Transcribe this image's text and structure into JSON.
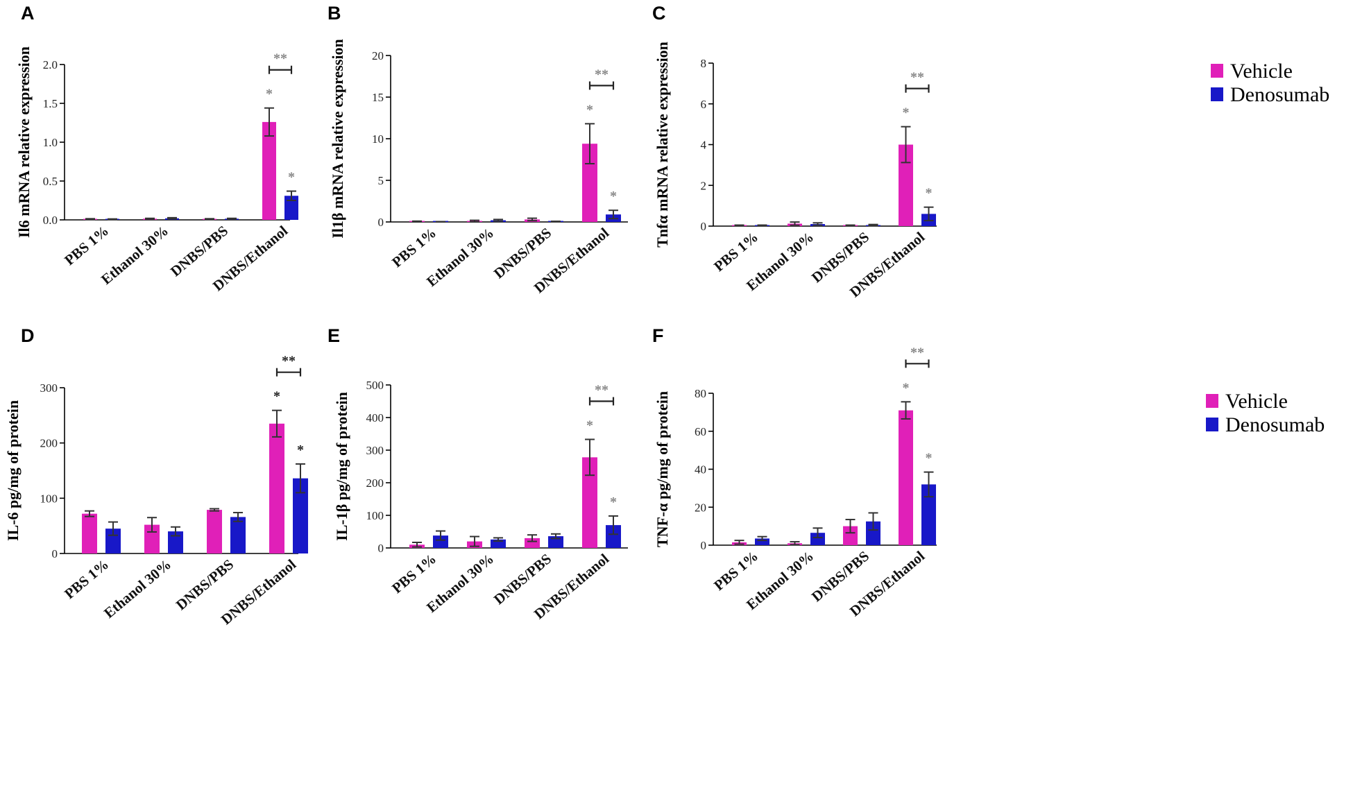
{
  "colors": {
    "vehicle": "#e020b8",
    "denosumab": "#1818c8"
  },
  "legend": [
    {
      "name": "Vehicle",
      "color": "#e020b8"
    },
    {
      "name": "Denosumab",
      "color": "#1818c8"
    }
  ],
  "chart_data": [
    {
      "panel": "A",
      "type": "bar",
      "ylabel": "Il6 mRNA relative expression",
      "ylim": [
        0,
        2.0
      ],
      "yticks": [
        "0.0",
        "0.5",
        "1.0",
        "1.5",
        "2.0"
      ],
      "categories": [
        "PBS 1%",
        "Ethanol 30%",
        "DNBS/PBS",
        "DNBS/Ethanol"
      ],
      "series": [
        {
          "name": "Vehicle",
          "values": [
            0.01,
            0.015,
            0.01,
            1.26
          ],
          "errors": [
            0.005,
            0.005,
            0.005,
            0.18
          ],
          "sig": [
            "",
            "",
            "",
            "*"
          ]
        },
        {
          "name": "Denosumab",
          "values": [
            0.008,
            0.02,
            0.015,
            0.31
          ],
          "errors": [
            0.004,
            0.008,
            0.005,
            0.06
          ],
          "sig": [
            "",
            "",
            "",
            "*"
          ]
        }
      ],
      "bracket": {
        "category": 3,
        "label": "**"
      }
    },
    {
      "panel": "B",
      "type": "bar",
      "ylabel": "Il1β mRNA relative expression",
      "ylim": [
        0,
        20
      ],
      "yticks": [
        "0",
        "5",
        "10",
        "15",
        "20"
      ],
      "categories": [
        "PBS 1%",
        "Ethanol 30%",
        "DNBS/PBS",
        "DNBS/Ethanol"
      ],
      "series": [
        {
          "name": "Vehicle",
          "values": [
            0.05,
            0.1,
            0.3,
            9.4
          ],
          "errors": [
            0.05,
            0.1,
            0.15,
            2.4
          ],
          "sig": [
            "",
            "",
            "",
            "*"
          ]
        },
        {
          "name": "Denosumab",
          "values": [
            0.02,
            0.2,
            0.05,
            0.9
          ],
          "errors": [
            0.02,
            0.1,
            0.03,
            0.5
          ],
          "sig": [
            "",
            "",
            "",
            "*"
          ]
        }
      ],
      "bracket": {
        "category": 3,
        "label": "**"
      }
    },
    {
      "panel": "C",
      "type": "bar",
      "ylabel": "Tnfα mRNA relative expression",
      "ylim": [
        0,
        8
      ],
      "yticks": [
        "0",
        "2",
        "4",
        "6",
        "8"
      ],
      "categories": [
        "PBS 1%",
        "Ethanol 30%",
        "DNBS/PBS",
        "DNBS/Ethanol"
      ],
      "series": [
        {
          "name": "Vehicle",
          "values": [
            0.03,
            0.12,
            0.03,
            4.0
          ],
          "errors": [
            0.02,
            0.08,
            0.02,
            0.88
          ],
          "sig": [
            "",
            "",
            "",
            "*"
          ]
        },
        {
          "name": "Denosumab",
          "values": [
            0.03,
            0.1,
            0.05,
            0.6
          ],
          "errors": [
            0.02,
            0.06,
            0.03,
            0.33
          ],
          "sig": [
            "",
            "",
            "",
            "*"
          ]
        }
      ],
      "bracket": {
        "category": 3,
        "label": "**"
      }
    },
    {
      "panel": "D",
      "type": "bar",
      "ylabel": "IL-6 pg/mg of protein",
      "ylim": [
        0,
        300
      ],
      "yticks": [
        "0",
        "100",
        "200",
        "300"
      ],
      "categories": [
        "PBS 1%",
        "Ethanol 30%",
        "DNBS/PBS",
        "DNBS/Ethanol"
      ],
      "series": [
        {
          "name": "Vehicle",
          "values": [
            72,
            52,
            79,
            235
          ],
          "errors": [
            5,
            13,
            2,
            24
          ],
          "sig": [
            "",
            "",
            "",
            "*"
          ]
        },
        {
          "name": "Denosumab",
          "values": [
            45,
            40,
            66,
            136
          ],
          "errors": [
            12,
            8,
            8,
            26
          ],
          "sig": [
            "",
            "",
            "",
            "*"
          ]
        }
      ],
      "bracket": {
        "category": 3,
        "label": "**"
      }
    },
    {
      "panel": "E",
      "type": "bar",
      "ylabel": "IL-1β pg/mg of protein",
      "ylim": [
        0,
        500
      ],
      "yticks": [
        "0",
        "100",
        "200",
        "300",
        "400",
        "500"
      ],
      "categories": [
        "PBS 1%",
        "Ethanol 30%",
        "DNBS/PBS",
        "DNBS/Ethanol"
      ],
      "series": [
        {
          "name": "Vehicle",
          "values": [
            10,
            20,
            30,
            278
          ],
          "errors": [
            7,
            15,
            10,
            55
          ],
          "sig": [
            "",
            "",
            "",
            "*"
          ]
        },
        {
          "name": "Denosumab",
          "values": [
            38,
            26,
            36,
            70
          ],
          "errors": [
            14,
            5,
            7,
            28
          ],
          "sig": [
            "",
            "",
            "",
            "*"
          ]
        }
      ],
      "bracket": {
        "category": 3,
        "label": "**"
      }
    },
    {
      "panel": "F",
      "type": "bar",
      "ylabel": "TNF-α pg/mg of protein",
      "ylim": [
        0,
        80
      ],
      "yticks": [
        "0",
        "20",
        "40",
        "60",
        "80"
      ],
      "categories": [
        "PBS 1%",
        "Ethanol 30%",
        "DNBS/PBS",
        "DNBS/Ethanol"
      ],
      "series": [
        {
          "name": "Vehicle",
          "values": [
            1.5,
            1,
            10,
            71
          ],
          "errors": [
            1,
            0.8,
            3.5,
            4.5
          ],
          "sig": [
            "",
            "",
            "",
            "*"
          ]
        },
        {
          "name": "Denosumab",
          "values": [
            3.5,
            6.5,
            12.5,
            32
          ],
          "errors": [
            1,
            2.5,
            4.5,
            6.5
          ],
          "sig": [
            "",
            "",
            "",
            "*"
          ]
        }
      ],
      "bracket": {
        "category": 3,
        "label": "**"
      }
    }
  ]
}
